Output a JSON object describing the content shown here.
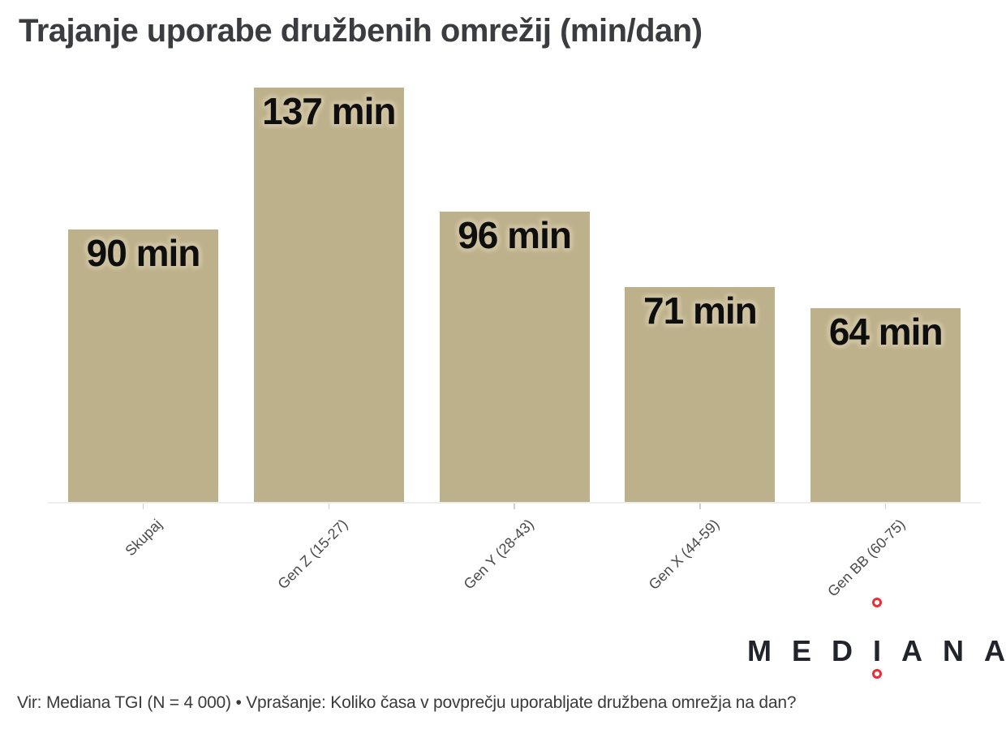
{
  "title": "Trajanje uporabe družbenih omrežij (min/dan)",
  "footer": {
    "source": "Vir: Mediana TGI (N = 4 000) • Vprašanje: Koliko časa v povprečju uporabljate družbena omrežja na dan?"
  },
  "logo": {
    "name": "MEDIANA",
    "letters": [
      "M",
      "E",
      "D",
      "I",
      "A",
      "N",
      "A"
    ]
  },
  "colors": {
    "bar": "#bdb18c",
    "label_halo": "#cec2a1",
    "value_text": "#0e0e0e",
    "title_text": "#3a3c3f",
    "axis_line": "#ededed",
    "tick": "#cfcfcf",
    "category_text": "#4a4a4a",
    "source_text": "#3a3a3a",
    "logo_text": "#21242b",
    "logo_accent": "#ee2b37",
    "page_bg": "#ffffff"
  },
  "chart_data": {
    "type": "bar",
    "title": "Trajanje uporabe družbenih omrežij (min/dan)",
    "categories": [
      "Skupaj",
      "Gen Z (15-27)",
      "Gen Y (28-43)",
      "Gen X (44-59)",
      "Gen BB (60-75)"
    ],
    "values": [
      90,
      137,
      96,
      71,
      64
    ],
    "value_labels": [
      "90 min",
      "137 min",
      "96 min",
      "71 min",
      "64 min"
    ],
    "unit": "min/dan",
    "xlabel": "",
    "ylabel": "",
    "ylim": [
      0,
      150
    ],
    "grid": false,
    "legend": "none",
    "bar_color": "#bdb18c",
    "value_label_position": "inside-top",
    "category_label_rotation_deg": 45
  }
}
